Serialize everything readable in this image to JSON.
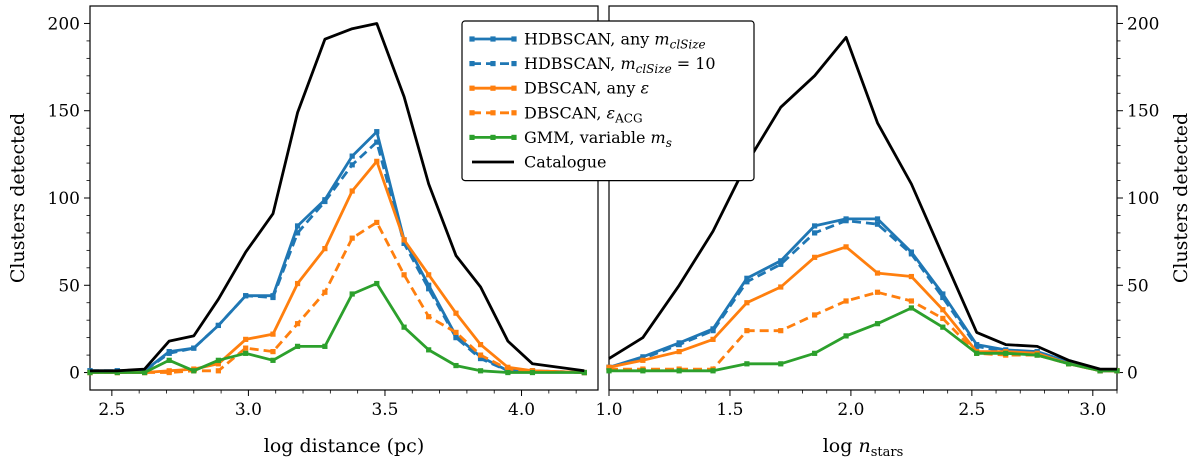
{
  "chart_data": [
    {
      "type": "line",
      "xlabel": "log distance (pc)",
      "ylabel": "Clusters detected",
      "xlim": [
        2.42,
        4.28
      ],
      "ylim": [
        -10,
        210
      ],
      "xticks": [
        2.5,
        3.0,
        3.5,
        4.0
      ],
      "xtick_labels": [
        "2.5",
        "3.0",
        "3.5",
        "4.0"
      ],
      "yticks": [
        0,
        50,
        100,
        150,
        200
      ],
      "ytick_labels": [
        "0",
        "50",
        "100",
        "150",
        "200"
      ],
      "ytick_side": "left",
      "x": [
        2.42,
        2.52,
        2.62,
        2.71,
        2.8,
        2.89,
        2.99,
        3.09,
        3.18,
        3.28,
        3.38,
        3.47,
        3.57,
        3.66,
        3.76,
        3.85,
        3.95,
        4.04,
        4.23
      ],
      "series": [
        {
          "name": "HDBSCAN, any m_clSize",
          "color": "#1f77b4",
          "dash": "solid",
          "marker": true,
          "values": [
            1,
            1,
            1,
            12,
            14,
            27,
            44,
            44,
            84,
            99,
            124,
            138,
            76,
            50,
            21,
            9,
            1,
            1,
            0
          ]
        },
        {
          "name": "HDBSCAN, m_clSize = 10",
          "color": "#1f77b4",
          "dash": "dashed",
          "marker": true,
          "values": [
            1,
            1,
            1,
            11,
            14,
            27,
            44,
            43,
            80,
            98,
            119,
            132,
            74,
            48,
            20,
            8,
            1,
            1,
            0
          ]
        },
        {
          "name": "DBSCAN, any ε",
          "color": "#ff7f0e",
          "dash": "solid",
          "marker": true,
          "values": [
            0,
            0,
            0,
            1,
            2,
            5,
            19,
            22,
            51,
            71,
            104,
            121,
            76,
            56,
            34,
            16,
            3,
            1,
            0
          ]
        },
        {
          "name": "DBSCAN, ε_ACG",
          "color": "#ff7f0e",
          "dash": "dashed",
          "marker": true,
          "values": [
            0,
            0,
            0,
            0,
            1,
            1,
            14,
            12,
            28,
            46,
            77,
            86,
            56,
            32,
            23,
            10,
            2,
            1,
            0
          ]
        },
        {
          "name": "GMM, variable m_s",
          "color": "#2ca02c",
          "dash": "solid",
          "marker": true,
          "values": [
            0,
            0,
            0,
            7,
            1,
            7,
            11,
            7,
            15,
            15,
            45,
            51,
            26,
            13,
            4,
            1,
            0,
            0,
            0
          ]
        },
        {
          "name": "Catalogue",
          "color": "#000000",
          "dash": "solid",
          "marker": false,
          "values": [
            1,
            1,
            2,
            18,
            21,
            42,
            69,
            91,
            149,
            191,
            197,
            200,
            158,
            108,
            67,
            49,
            18,
            5,
            1
          ]
        }
      ]
    },
    {
      "type": "line",
      "xlabel": "log n_stars",
      "ylabel": "Clusters detected",
      "xlim": [
        1.0,
        3.1
      ],
      "ylim": [
        -10,
        210
      ],
      "xticks": [
        1.0,
        1.5,
        2.0,
        2.5,
        3.0
      ],
      "xtick_labels": [
        "1.0",
        "1.5",
        "2.0",
        "2.5",
        "3.0"
      ],
      "yticks": [
        0,
        50,
        100,
        150,
        200
      ],
      "ytick_labels": [
        "0",
        "50",
        "100",
        "150",
        "200"
      ],
      "ytick_side": "right",
      "x": [
        1.0,
        1.14,
        1.29,
        1.43,
        1.57,
        1.71,
        1.85,
        1.98,
        2.11,
        2.25,
        2.38,
        2.52,
        2.64,
        2.77,
        2.9,
        3.03,
        3.1
      ],
      "series": [
        {
          "name": "HDBSCAN, any m_clSize",
          "color": "#1f77b4",
          "dash": "solid",
          "marker": true,
          "values": [
            3,
            9,
            17,
            25,
            54,
            64,
            84,
            88,
            88,
            69,
            45,
            16,
            13,
            12,
            6,
            1,
            1
          ]
        },
        {
          "name": "HDBSCAN, m_clSize = 10",
          "color": "#1f77b4",
          "dash": "dashed",
          "marker": true,
          "values": [
            3,
            8,
            16,
            24,
            52,
            62,
            80,
            87,
            85,
            68,
            43,
            15,
            12,
            12,
            6,
            1,
            1
          ]
        },
        {
          "name": "DBSCAN, any ε",
          "color": "#ff7f0e",
          "dash": "solid",
          "marker": true,
          "values": [
            3,
            7,
            12,
            19,
            40,
            49,
            66,
            72,
            57,
            55,
            36,
            12,
            12,
            11,
            5,
            1,
            1
          ]
        },
        {
          "name": "DBSCAN, ε_ACG",
          "color": "#ff7f0e",
          "dash": "dashed",
          "marker": true,
          "values": [
            2,
            2,
            2,
            2,
            24,
            24,
            33,
            41,
            46,
            41,
            31,
            11,
            10,
            10,
            5,
            1,
            1
          ]
        },
        {
          "name": "GMM, variable m_s",
          "color": "#2ca02c",
          "dash": "solid",
          "marker": true,
          "values": [
            1,
            1,
            1,
            1,
            5,
            5,
            11,
            21,
            28,
            37,
            26,
            11,
            11,
            10,
            5,
            1,
            1
          ]
        },
        {
          "name": "Catalogue",
          "color": "#000000",
          "dash": "solid",
          "marker": false,
          "values": [
            8,
            20,
            50,
            81,
            120,
            152,
            170,
            192,
            143,
            108,
            67,
            23,
            16,
            15,
            7,
            2,
            2
          ]
        }
      ]
    }
  ],
  "legend": {
    "placement": "top-center",
    "entries": [
      {
        "prefix": "HDBSCAN, any ",
        "math": "m",
        "sub": "clSize",
        "suffix": "",
        "color": "#1f77b4",
        "dash": "solid",
        "marker": true
      },
      {
        "prefix": "HDBSCAN, ",
        "math": "m",
        "sub": "clSize",
        "suffix": " = 10",
        "color": "#1f77b4",
        "dash": "dashed",
        "marker": true
      },
      {
        "prefix": "DBSCAN, any ",
        "math": "ε",
        "sub": "",
        "suffix": "",
        "color": "#ff7f0e",
        "dash": "solid",
        "marker": true
      },
      {
        "prefix": "DBSCAN, ",
        "math": "ε",
        "sub": "ACG",
        "suffix": "",
        "color": "#ff7f0e",
        "dash": "dashed",
        "marker": true
      },
      {
        "prefix": "GMM, variable ",
        "math": "m",
        "sub": "s",
        "suffix": "",
        "color": "#2ca02c",
        "dash": "solid",
        "marker": true
      },
      {
        "prefix": "Catalogue",
        "math": "",
        "sub": "",
        "suffix": "",
        "color": "#000000",
        "dash": "solid",
        "marker": false
      }
    ]
  }
}
